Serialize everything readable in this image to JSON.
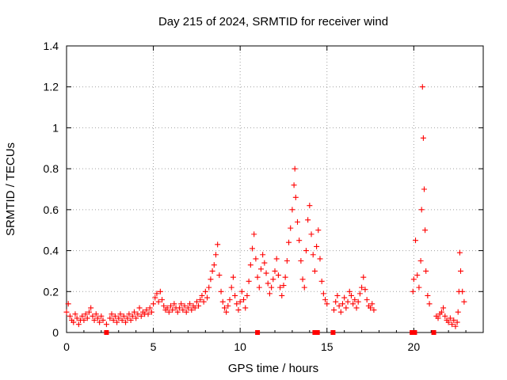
{
  "chart_data": {
    "type": "scatter",
    "title": "Day 215 of 2024, SRMTID for receiver wind",
    "xlabel": "GPS time / hours",
    "ylabel": "SRMTID / TECUs",
    "xlim": [
      0,
      24
    ],
    "ylim": [
      0,
      1.4
    ],
    "xticks": [
      0,
      5,
      10,
      15,
      20
    ],
    "xtick_labels": [
      "0",
      "5",
      "10",
      "15",
      "20"
    ],
    "yticks": [
      0,
      0.2,
      0.4,
      0.6,
      0.8,
      1.0,
      1.2,
      1.4
    ],
    "ytick_labels": [
      "0",
      "0.2",
      "0.4",
      "0.6",
      "0.8",
      "1",
      "1.2",
      "1.4"
    ],
    "grid": true,
    "marker": "plus",
    "color": "#ff0000",
    "series": [
      {
        "name": "SRMTID",
        "points": [
          [
            0.0,
            0.1
          ],
          [
            0.1,
            0.14
          ],
          [
            0.2,
            0.08
          ],
          [
            0.3,
            0.06
          ],
          [
            0.4,
            0.05
          ],
          [
            0.5,
            0.09
          ],
          [
            0.6,
            0.07
          ],
          [
            0.7,
            0.04
          ],
          [
            0.8,
            0.06
          ],
          [
            0.9,
            0.08
          ],
          [
            1.0,
            0.06
          ],
          [
            1.1,
            0.09
          ],
          [
            1.2,
            0.07
          ],
          [
            1.3,
            0.1
          ],
          [
            1.4,
            0.12
          ],
          [
            1.5,
            0.08
          ],
          [
            1.6,
            0.06
          ],
          [
            1.7,
            0.09
          ],
          [
            1.8,
            0.07
          ],
          [
            1.9,
            0.05
          ],
          [
            2.0,
            0.08
          ],
          [
            2.1,
            0.06
          ],
          [
            2.3,
            0.04
          ],
          [
            2.5,
            0.07
          ],
          [
            2.6,
            0.09
          ],
          [
            2.7,
            0.06
          ],
          [
            2.8,
            0.08
          ],
          [
            2.9,
            0.05
          ],
          [
            3.0,
            0.07
          ],
          [
            3.1,
            0.09
          ],
          [
            3.2,
            0.06
          ],
          [
            3.3,
            0.08
          ],
          [
            3.4,
            0.05
          ],
          [
            3.5,
            0.07
          ],
          [
            3.6,
            0.09
          ],
          [
            3.7,
            0.06
          ],
          [
            3.8,
            0.08
          ],
          [
            3.9,
            0.1
          ],
          [
            4.0,
            0.07
          ],
          [
            4.1,
            0.09
          ],
          [
            4.2,
            0.12
          ],
          [
            4.3,
            0.08
          ],
          [
            4.4,
            0.1
          ],
          [
            4.5,
            0.09
          ],
          [
            4.6,
            0.11
          ],
          [
            4.7,
            0.09
          ],
          [
            4.8,
            0.12
          ],
          [
            4.9,
            0.1
          ],
          [
            5.0,
            0.14
          ],
          [
            5.1,
            0.17
          ],
          [
            5.2,
            0.19
          ],
          [
            5.3,
            0.15
          ],
          [
            5.4,
            0.2
          ],
          [
            5.5,
            0.16
          ],
          [
            5.6,
            0.13
          ],
          [
            5.7,
            0.11
          ],
          [
            5.8,
            0.12
          ],
          [
            5.9,
            0.1
          ],
          [
            6.0,
            0.13
          ],
          [
            6.1,
            0.11
          ],
          [
            6.2,
            0.14
          ],
          [
            6.3,
            0.12
          ],
          [
            6.4,
            0.1
          ],
          [
            6.5,
            0.12
          ],
          [
            6.6,
            0.14
          ],
          [
            6.7,
            0.11
          ],
          [
            6.8,
            0.13
          ],
          [
            6.9,
            0.1
          ],
          [
            7.0,
            0.12
          ],
          [
            7.1,
            0.14
          ],
          [
            7.2,
            0.11
          ],
          [
            7.3,
            0.13
          ],
          [
            7.4,
            0.12
          ],
          [
            7.5,
            0.15
          ],
          [
            7.6,
            0.13
          ],
          [
            7.7,
            0.16
          ],
          [
            7.8,
            0.18
          ],
          [
            7.9,
            0.15
          ],
          [
            8.0,
            0.2
          ],
          [
            8.1,
            0.17
          ],
          [
            8.2,
            0.22
          ],
          [
            8.3,
            0.26
          ],
          [
            8.4,
            0.3
          ],
          [
            8.5,
            0.33
          ],
          [
            8.6,
            0.38
          ],
          [
            8.7,
            0.43
          ],
          [
            8.8,
            0.28
          ],
          [
            8.9,
            0.2
          ],
          [
            9.0,
            0.15
          ],
          [
            9.1,
            0.12
          ],
          [
            9.2,
            0.1
          ],
          [
            9.3,
            0.13
          ],
          [
            9.4,
            0.16
          ],
          [
            9.5,
            0.22
          ],
          [
            9.6,
            0.27
          ],
          [
            9.7,
            0.18
          ],
          [
            9.8,
            0.14
          ],
          [
            9.9,
            0.11
          ],
          [
            10.0,
            0.15
          ],
          [
            10.1,
            0.2
          ],
          [
            10.2,
            0.16
          ],
          [
            10.3,
            0.12
          ],
          [
            10.4,
            0.18
          ],
          [
            10.5,
            0.25
          ],
          [
            10.6,
            0.33
          ],
          [
            10.7,
            0.41
          ],
          [
            10.8,
            0.48
          ],
          [
            10.9,
            0.36
          ],
          [
            11.0,
            0.27
          ],
          [
            11.1,
            0.22
          ],
          [
            11.2,
            0.31
          ],
          [
            11.3,
            0.38
          ],
          [
            11.4,
            0.34
          ],
          [
            11.5,
            0.29
          ],
          [
            11.6,
            0.24
          ],
          [
            11.7,
            0.19
          ],
          [
            11.8,
            0.22
          ],
          [
            11.9,
            0.26
          ],
          [
            12.0,
            0.3
          ],
          [
            12.1,
            0.36
          ],
          [
            12.2,
            0.28
          ],
          [
            12.3,
            0.22
          ],
          [
            12.4,
            0.18
          ],
          [
            12.5,
            0.23
          ],
          [
            12.6,
            0.27
          ],
          [
            12.7,
            0.35
          ],
          [
            12.8,
            0.44
          ],
          [
            12.9,
            0.51
          ],
          [
            13.0,
            0.6
          ],
          [
            13.1,
            0.72
          ],
          [
            13.15,
            0.8
          ],
          [
            13.2,
            0.66
          ],
          [
            13.3,
            0.54
          ],
          [
            13.4,
            0.45
          ],
          [
            13.5,
            0.35
          ],
          [
            13.6,
            0.26
          ],
          [
            13.7,
            0.22
          ],
          [
            13.8,
            0.4
          ],
          [
            13.9,
            0.55
          ],
          [
            14.0,
            0.62
          ],
          [
            14.1,
            0.48
          ],
          [
            14.2,
            0.38
          ],
          [
            14.3,
            0.3
          ],
          [
            14.4,
            0.42
          ],
          [
            14.5,
            0.5
          ],
          [
            14.6,
            0.36
          ],
          [
            14.7,
            0.25
          ],
          [
            14.8,
            0.19
          ],
          [
            14.9,
            0.16
          ],
          [
            15.0,
            0.14
          ],
          [
            15.4,
            0.11
          ],
          [
            15.5,
            0.15
          ],
          [
            15.6,
            0.18
          ],
          [
            15.7,
            0.13
          ],
          [
            15.8,
            0.1
          ],
          [
            15.9,
            0.14
          ],
          [
            16.0,
            0.17
          ],
          [
            16.1,
            0.12
          ],
          [
            16.2,
            0.15
          ],
          [
            16.3,
            0.2
          ],
          [
            16.4,
            0.18
          ],
          [
            16.5,
            0.14
          ],
          [
            16.6,
            0.16
          ],
          [
            16.7,
            0.12
          ],
          [
            16.8,
            0.15
          ],
          [
            16.9,
            0.19
          ],
          [
            17.0,
            0.22
          ],
          [
            17.1,
            0.27
          ],
          [
            17.2,
            0.21
          ],
          [
            17.3,
            0.16
          ],
          [
            17.4,
            0.13
          ],
          [
            17.5,
            0.12
          ],
          [
            17.6,
            0.14
          ],
          [
            17.7,
            0.11
          ],
          [
            19.95,
            0.2
          ],
          [
            20.0,
            0.26
          ],
          [
            20.1,
            0.45
          ],
          [
            20.2,
            0.28
          ],
          [
            20.3,
            0.22
          ],
          [
            20.4,
            0.35
          ],
          [
            20.45,
            0.6
          ],
          [
            20.5,
            1.2
          ],
          [
            20.55,
            0.95
          ],
          [
            20.6,
            0.7
          ],
          [
            20.65,
            0.5
          ],
          [
            20.7,
            0.3
          ],
          [
            20.8,
            0.18
          ],
          [
            20.9,
            0.14
          ],
          [
            21.3,
            0.08
          ],
          [
            21.4,
            0.07
          ],
          [
            21.5,
            0.09
          ],
          [
            21.6,
            0.1
          ],
          [
            21.7,
            0.12
          ],
          [
            21.8,
            0.08
          ],
          [
            21.9,
            0.06
          ],
          [
            22.0,
            0.05
          ],
          [
            22.1,
            0.07
          ],
          [
            22.2,
            0.04
          ],
          [
            22.3,
            0.06
          ],
          [
            22.4,
            0.03
          ],
          [
            22.5,
            0.05
          ],
          [
            22.55,
            0.1
          ],
          [
            22.6,
            0.2
          ],
          [
            22.65,
            0.39
          ],
          [
            22.7,
            0.3
          ],
          [
            22.8,
            0.2
          ],
          [
            22.9,
            0.15
          ]
        ]
      },
      {
        "name": "zero-level",
        "marker": "square",
        "points": [
          [
            2.3,
            0.0
          ],
          [
            11.0,
            0.0
          ],
          [
            14.3,
            0.0
          ],
          [
            14.45,
            0.0
          ],
          [
            15.35,
            0.0
          ],
          [
            19.9,
            0.0
          ],
          [
            20.05,
            0.0
          ],
          [
            21.15,
            0.0
          ]
        ]
      }
    ]
  }
}
